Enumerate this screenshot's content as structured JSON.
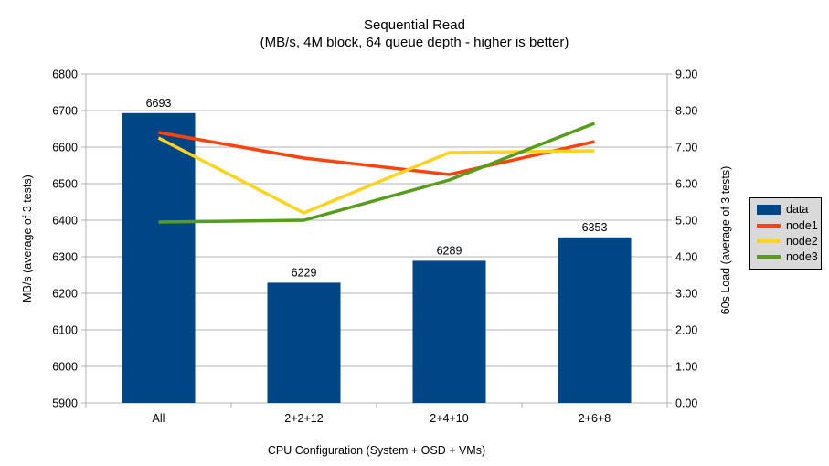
{
  "chart_data": {
    "type": "bar",
    "combo": "bar+line",
    "title": "Sequential Read",
    "subtitle": "(MB/s, 4M block, 64 queue depth - higher is better)",
    "categories": [
      "All",
      "2+2+12",
      "2+4+10",
      "2+6+8"
    ],
    "series": [
      {
        "name": "data",
        "type": "bar",
        "axis": "left",
        "color": "#004586",
        "values": [
          6693,
          6229,
          6289,
          6353
        ]
      },
      {
        "name": "node1",
        "type": "line",
        "axis": "right",
        "color": "#ff420e",
        "values": [
          7.4,
          6.7,
          6.25,
          7.15
        ]
      },
      {
        "name": "node2",
        "type": "line",
        "axis": "right",
        "color": "#ffd320",
        "values": [
          7.25,
          5.2,
          6.85,
          6.9
        ]
      },
      {
        "name": "node3",
        "type": "line",
        "axis": "right",
        "color": "#579d1c",
        "values": [
          4.95,
          5.0,
          6.1,
          7.65
        ]
      }
    ],
    "bar_labels": [
      "6693",
      "6229",
      "6289",
      "6353"
    ],
    "xlabel": "CPU Configuration (System + OSD + VMs)",
    "ylabel_left": "MB/s (average of 3 tests)",
    "ylabel_right": "60s Load (average of 3 tests)",
    "ylim_left": [
      5900,
      6800
    ],
    "ytick_step_left": 100,
    "ylim_right": [
      0,
      9
    ],
    "ytick_step_right": 1,
    "right_tick_decimals": 2,
    "grid": "horizontal",
    "grid_color": "#b3b3b3",
    "axis_color": "#b3b3b3",
    "legend_position": "right",
    "legend_bg": "#d9d9d9"
  }
}
